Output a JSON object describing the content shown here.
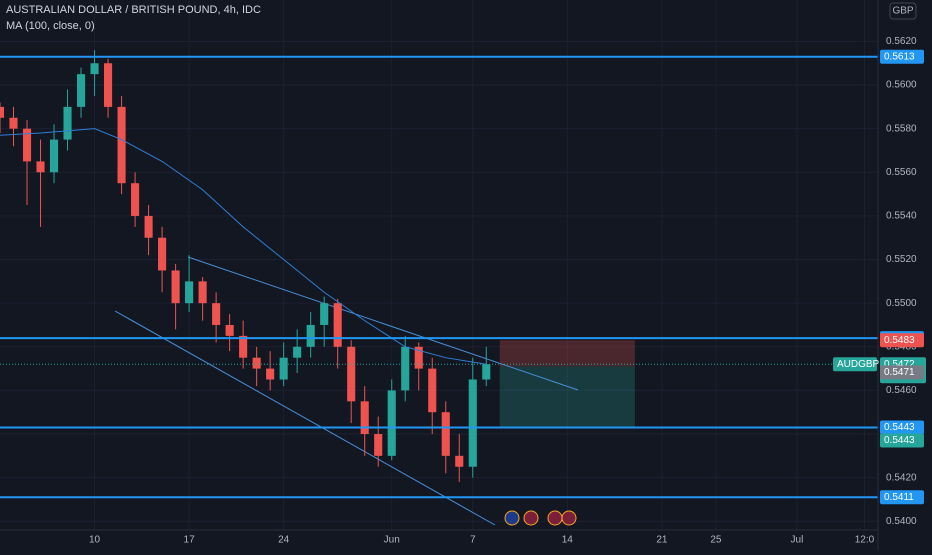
{
  "header": {
    "title": "AUSTRALIAN DOLLAR / BRITISH POUND, 4h, IDC",
    "indicator": "MA (100, close, 0)",
    "currency": "GBP"
  },
  "chart_data": {
    "type": "candlestick",
    "xlim": [
      -7,
      58
    ],
    "xticks": [
      {
        "value": 0,
        "label": "10"
      },
      {
        "value": 7,
        "label": "17"
      },
      {
        "value": 14,
        "label": "24"
      },
      {
        "value": 22,
        "label": "Jun"
      },
      {
        "value": 28,
        "label": "7"
      },
      {
        "value": 35,
        "label": "14"
      },
      {
        "value": 42,
        "label": "21"
      },
      {
        "value": 46,
        "label": "25"
      },
      {
        "value": 52,
        "label": "Jul"
      },
      {
        "value": 57,
        "label": "12:0"
      }
    ],
    "ylim": [
      0.5396,
      0.5639
    ],
    "yticks": [
      {
        "value": 0.54,
        "label": "0.5400"
      },
      {
        "value": 0.542,
        "label": "0.5420"
      },
      {
        "value": 0.544,
        "label": "0.5440"
      },
      {
        "value": 0.546,
        "label": "0.5460"
      },
      {
        "value": 0.548,
        "label": "0.5480"
      },
      {
        "value": 0.55,
        "label": "0.5500"
      },
      {
        "value": 0.552,
        "label": "0.5520"
      },
      {
        "value": 0.554,
        "label": "0.5540"
      },
      {
        "value": 0.556,
        "label": "0.5560"
      },
      {
        "value": 0.558,
        "label": "0.5580"
      },
      {
        "value": 0.56,
        "label": "0.5600"
      },
      {
        "value": 0.562,
        "label": "0.5620"
      }
    ],
    "grid": true,
    "up_color": "#26a69a",
    "down_color": "#ef5350",
    "candles": [
      [
        -7,
        0.559,
        0.5592,
        0.5578,
        0.5585
      ],
      [
        -6,
        0.5585,
        0.559,
        0.5572,
        0.558
      ],
      [
        -5,
        0.558,
        0.5584,
        0.5545,
        0.5565
      ],
      [
        -4,
        0.5565,
        0.5575,
        0.5535,
        0.556
      ],
      [
        -3,
        0.556,
        0.5582,
        0.5555,
        0.5575
      ],
      [
        -2,
        0.5575,
        0.5598,
        0.557,
        0.559
      ],
      [
        -1,
        0.559,
        0.5608,
        0.5585,
        0.5605
      ],
      [
        0,
        0.5605,
        0.5616,
        0.5595,
        0.561
      ],
      [
        1,
        0.561,
        0.5612,
        0.5585,
        0.559
      ],
      [
        2,
        0.559,
        0.5595,
        0.555,
        0.5555
      ],
      [
        3,
        0.5555,
        0.556,
        0.5535,
        0.554
      ],
      [
        4,
        0.554,
        0.5545,
        0.5522,
        0.553
      ],
      [
        5,
        0.553,
        0.5535,
        0.5505,
        0.5515
      ],
      [
        6,
        0.5515,
        0.5518,
        0.5488,
        0.55
      ],
      [
        7,
        0.55,
        0.5522,
        0.5496,
        0.551
      ],
      [
        8,
        0.551,
        0.5512,
        0.5492,
        0.55
      ],
      [
        9,
        0.55,
        0.5505,
        0.5482,
        0.549
      ],
      [
        10,
        0.549,
        0.5495,
        0.5478,
        0.5485
      ],
      [
        11,
        0.5485,
        0.5492,
        0.547,
        0.5475
      ],
      [
        12,
        0.5475,
        0.548,
        0.5462,
        0.547
      ],
      [
        13,
        0.547,
        0.5478,
        0.546,
        0.5465
      ],
      [
        14,
        0.5465,
        0.5482,
        0.5462,
        0.5475
      ],
      [
        15,
        0.5475,
        0.5488,
        0.5468,
        0.548
      ],
      [
        16,
        0.548,
        0.5496,
        0.5475,
        0.549
      ],
      [
        17,
        0.549,
        0.5503,
        0.548,
        0.55
      ],
      [
        18,
        0.55,
        0.5502,
        0.547,
        0.548
      ],
      [
        19,
        0.548,
        0.5483,
        0.5445,
        0.5455
      ],
      [
        20,
        0.5455,
        0.5462,
        0.543,
        0.544
      ],
      [
        21,
        0.544,
        0.5448,
        0.5425,
        0.543
      ],
      [
        22,
        0.543,
        0.5465,
        0.5428,
        0.546
      ],
      [
        23,
        0.546,
        0.5485,
        0.5455,
        0.548
      ],
      [
        24,
        0.548,
        0.5482,
        0.546,
        0.547
      ],
      [
        25,
        0.547,
        0.5475,
        0.544,
        0.545
      ],
      [
        26,
        0.545,
        0.5455,
        0.5422,
        0.543
      ],
      [
        27,
        0.543,
        0.544,
        0.5418,
        0.5425
      ],
      [
        28,
        0.5425,
        0.5475,
        0.542,
        0.5465
      ],
      [
        29,
        0.5465,
        0.548,
        0.5462,
        0.5472
      ]
    ],
    "ma": {
      "color": "#2f7fd6",
      "x": [
        -7,
        -4,
        0,
        2,
        5,
        8,
        11,
        14,
        17,
        20,
        23,
        26,
        29
      ],
      "values": [
        0.5577,
        0.5578,
        0.558,
        0.5575,
        0.5565,
        0.5552,
        0.5535,
        0.552,
        0.5505,
        0.5492,
        0.548,
        0.5475,
        0.5472
      ]
    },
    "levels": {
      "color": "#2196f3",
      "values": [
        0.5613,
        0.5484,
        0.5443,
        0.5411
      ]
    },
    "position": {
      "start": 30,
      "end": 40,
      "stop": 0.5483,
      "entry": 0.5471,
      "target": 0.5443
    },
    "symbol": "AUDGBP",
    "last_price": 0.5472,
    "countdown": "03:46:26"
  }
}
